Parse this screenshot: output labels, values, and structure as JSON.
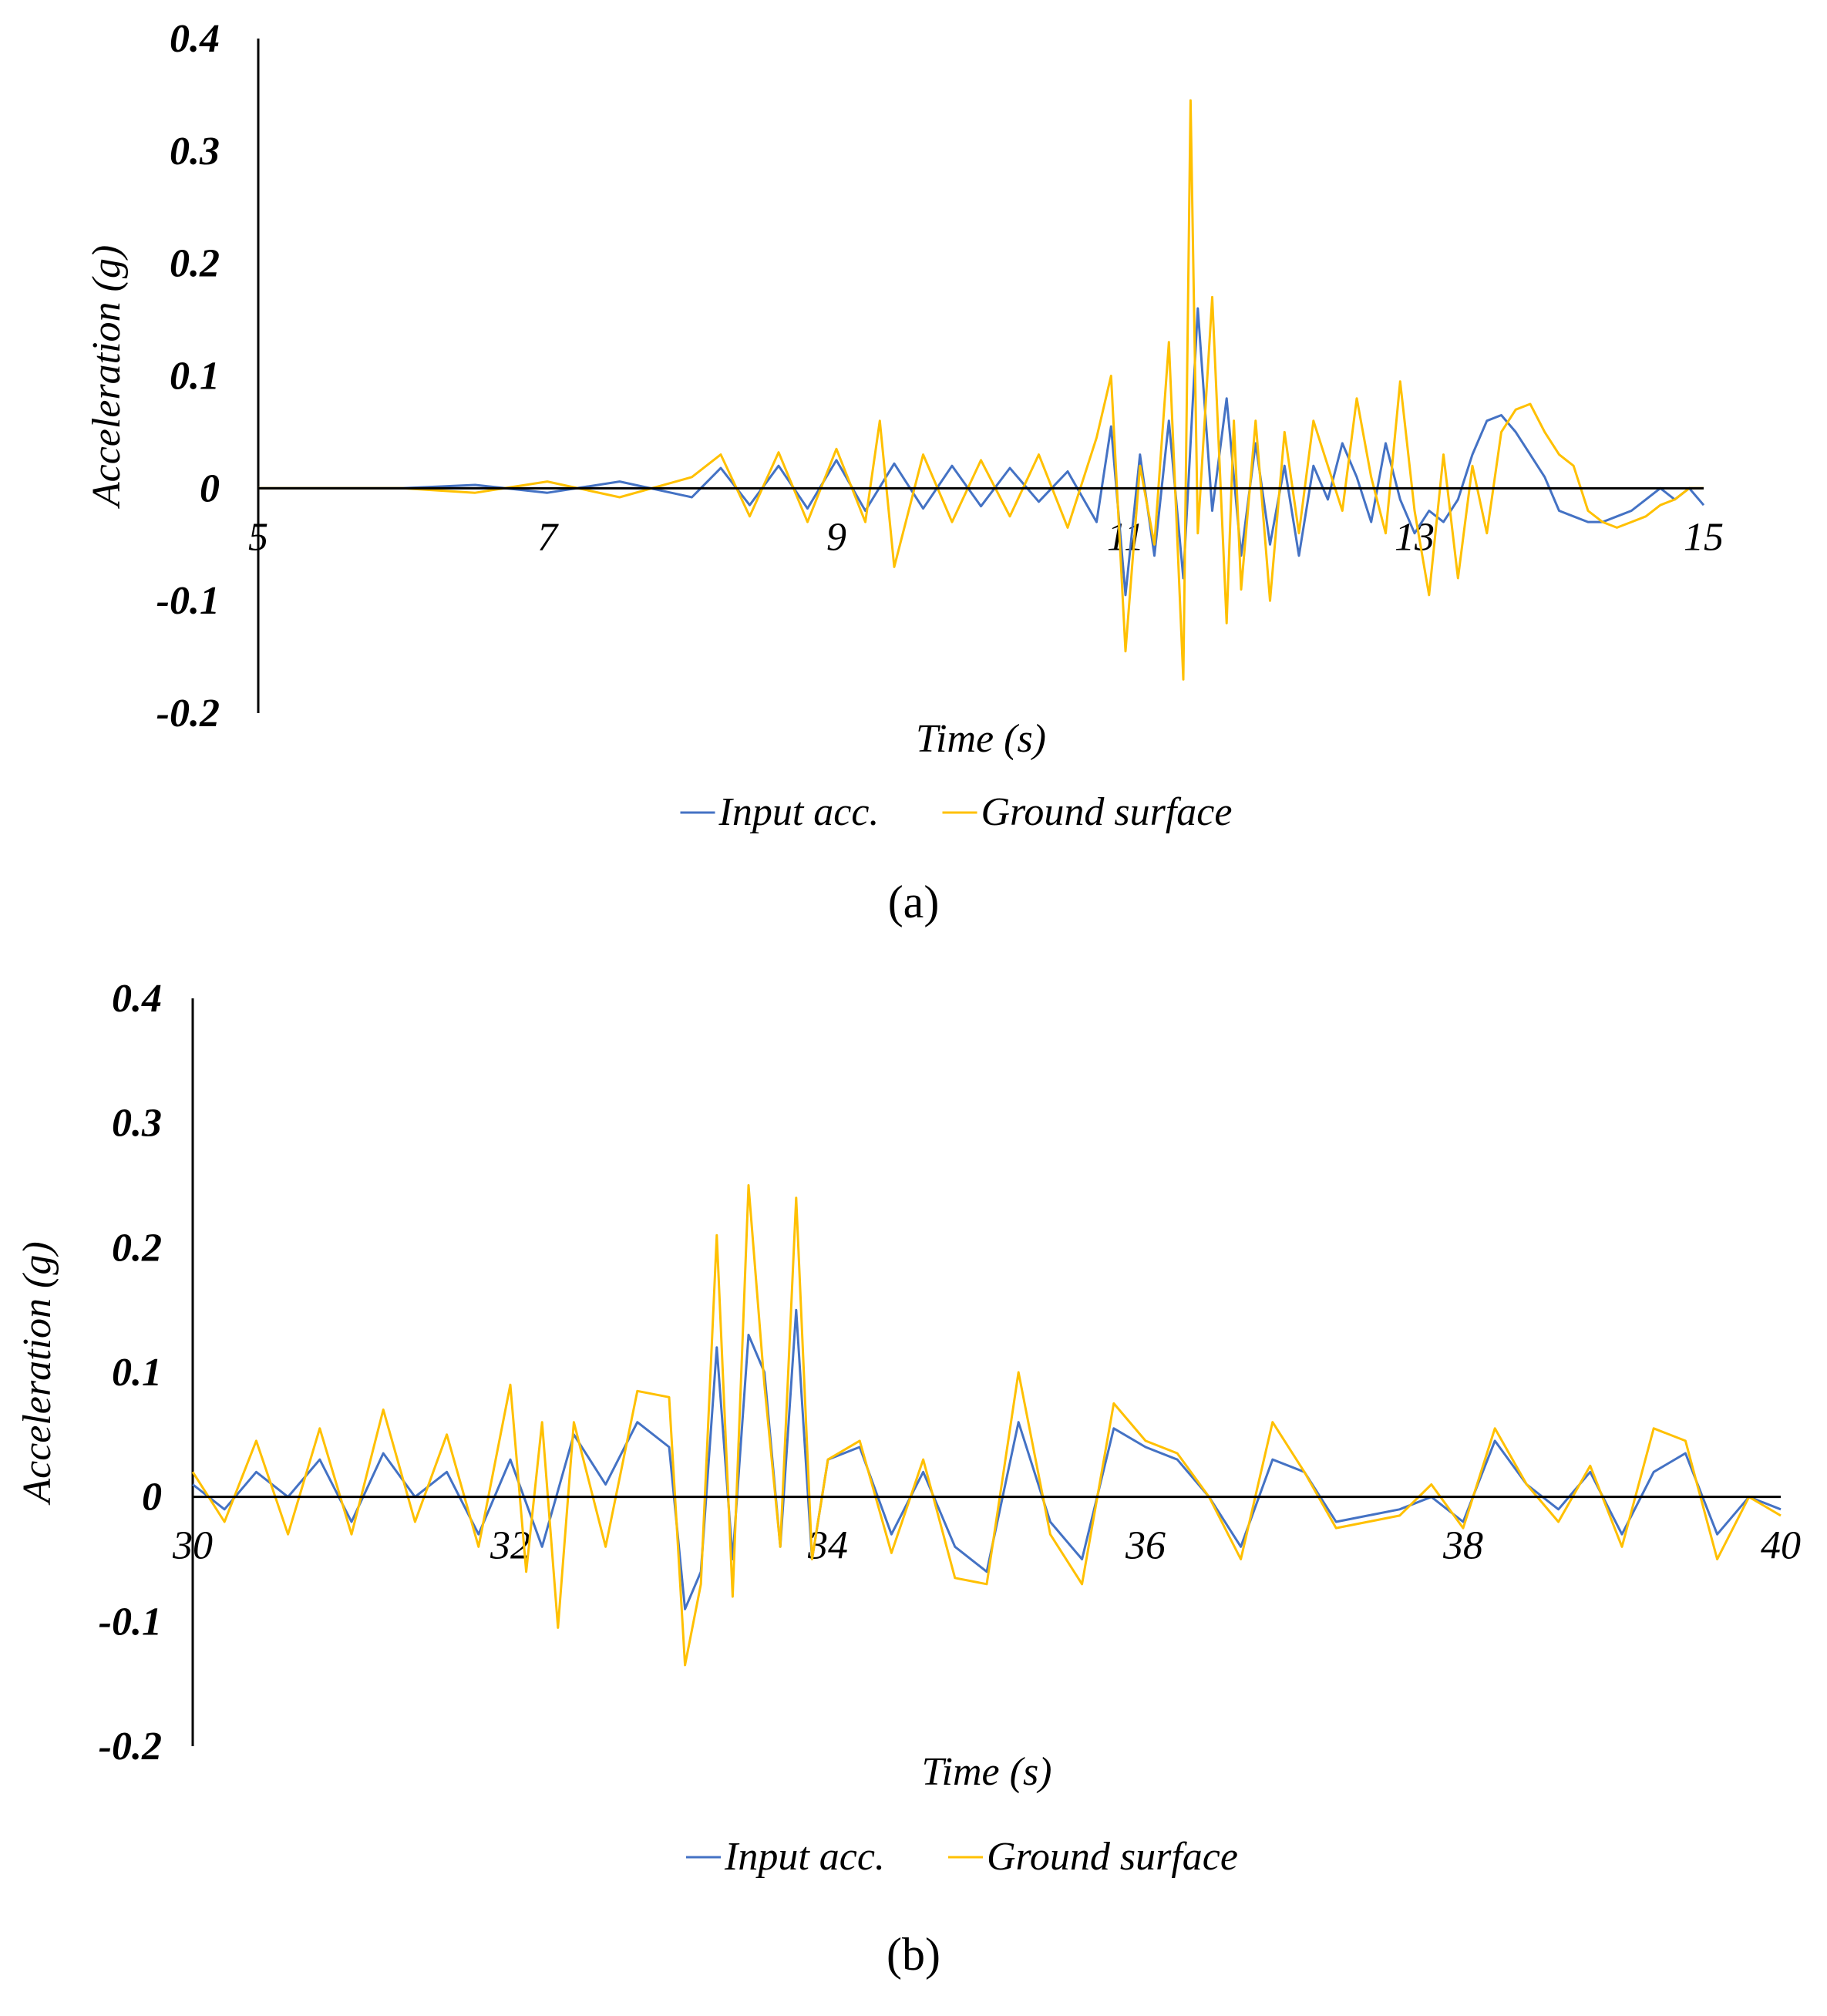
{
  "chart_data": [
    {
      "type": "line",
      "panel_label": "(a)",
      "xlabel": "Time (s)",
      "ylabel": "Acceleration (g)",
      "xlim": [
        5,
        15
      ],
      "ylim": [
        -0.2,
        0.4
      ],
      "x_ticks": [
        "5",
        "7",
        "9",
        "11",
        "13",
        "15"
      ],
      "y_ticks": [
        "0.4",
        "0.3",
        "0.2",
        "0.1",
        "0",
        "-0.1",
        "-0.2"
      ],
      "colors": {
        "input": "#4472C4",
        "ground": "#FFC000"
      },
      "series": [
        {
          "name": "Input acc.",
          "x": [
            5,
            6,
            6.5,
            7,
            7.5,
            8,
            8.2,
            8.4,
            8.6,
            8.8,
            9,
            9.2,
            9.4,
            9.6,
            9.8,
            10,
            10.2,
            10.4,
            10.6,
            10.8,
            10.9,
            11,
            11.1,
            11.2,
            11.3,
            11.4,
            11.5,
            11.6,
            11.7,
            11.8,
            11.9,
            12,
            12.1,
            12.2,
            12.3,
            12.4,
            12.5,
            12.6,
            12.7,
            12.8,
            12.9,
            13,
            13.1,
            13.2,
            13.3,
            13.4,
            13.5,
            13.6,
            13.7,
            13.8,
            13.9,
            14,
            14.1,
            14.2,
            14.3,
            14.4,
            14.5,
            14.6,
            14.7,
            14.8,
            14.9,
            15
          ],
          "values": [
            0,
            0,
            0.003,
            -0.004,
            0.006,
            -0.008,
            0.018,
            -0.015,
            0.02,
            -0.018,
            0.025,
            -0.02,
            0.022,
            -0.018,
            0.02,
            -0.016,
            0.018,
            -0.012,
            0.015,
            -0.03,
            0.055,
            -0.095,
            0.03,
            -0.06,
            0.06,
            -0.08,
            0.16,
            -0.02,
            0.08,
            -0.06,
            0.04,
            -0.05,
            0.02,
            -0.06,
            0.02,
            -0.01,
            0.04,
            0.01,
            -0.03,
            0.04,
            -0.01,
            -0.04,
            -0.02,
            -0.03,
            -0.01,
            0.03,
            0.06,
            0.065,
            0.05,
            0.03,
            0.01,
            -0.02,
            -0.025,
            -0.03,
            -0.03,
            -0.025,
            -0.02,
            -0.01,
            0,
            -0.01,
            0,
            -0.015
          ]
        },
        {
          "name": "Ground surface",
          "x": [
            5,
            6,
            6.5,
            7,
            7.5,
            8,
            8.2,
            8.4,
            8.6,
            8.8,
            9,
            9.2,
            9.3,
            9.4,
            9.6,
            9.8,
            10,
            10.2,
            10.4,
            10.6,
            10.8,
            10.9,
            11,
            11.1,
            11.2,
            11.3,
            11.4,
            11.45,
            11.5,
            11.6,
            11.7,
            11.75,
            11.8,
            11.9,
            12,
            12.1,
            12.2,
            12.3,
            12.4,
            12.5,
            12.6,
            12.7,
            12.8,
            12.9,
            13,
            13.1,
            13.2,
            13.3,
            13.4,
            13.5,
            13.6,
            13.7,
            13.8,
            13.9,
            14,
            14.1,
            14.2,
            14.3,
            14.4,
            14.5,
            14.6,
            14.7,
            14.8,
            14.9,
            15
          ],
          "values": [
            0,
            0,
            -0.004,
            0.006,
            -0.008,
            0.01,
            0.03,
            -0.025,
            0.032,
            -0.03,
            0.035,
            -0.03,
            0.06,
            -0.07,
            0.03,
            -0.03,
            0.025,
            -0.025,
            0.03,
            -0.035,
            0.045,
            0.1,
            -0.145,
            0.02,
            -0.05,
            0.13,
            -0.17,
            0.345,
            -0.04,
            0.17,
            -0.12,
            0.06,
            -0.09,
            0.06,
            -0.1,
            0.05,
            -0.04,
            0.06,
            0.02,
            -0.02,
            0.08,
            0.01,
            -0.04,
            0.095,
            -0.02,
            -0.095,
            0.03,
            -0.08,
            0.02,
            -0.04,
            0.05,
            0.07,
            0.075,
            0.05,
            0.03,
            0.02,
            -0.02,
            -0.03,
            -0.035,
            -0.03,
            -0.025,
            -0.015,
            -0.01,
            0,
            0
          ]
        }
      ],
      "legend": [
        "Input acc.",
        "Ground surface"
      ]
    },
    {
      "type": "line",
      "panel_label": "(b)",
      "xlabel": "Time (s)",
      "ylabel": "Acceleration (g)",
      "xlim": [
        30,
        40
      ],
      "ylim": [
        -0.2,
        0.4
      ],
      "x_ticks": [
        "30",
        "32",
        "34",
        "36",
        "38",
        "40"
      ],
      "y_ticks": [
        "0.4",
        "0.3",
        "0.2",
        "0.1",
        "0",
        "-0.1",
        "-0.2"
      ],
      "colors": {
        "input": "#4472C4",
        "ground": "#FFC000"
      },
      "series": [
        {
          "name": "Input acc.",
          "x": [
            30,
            30.2,
            30.4,
            30.6,
            30.8,
            31,
            31.2,
            31.4,
            31.6,
            31.8,
            32,
            32.2,
            32.4,
            32.6,
            32.8,
            33,
            33.1,
            33.2,
            33.3,
            33.4,
            33.5,
            33.6,
            33.7,
            33.8,
            33.9,
            34,
            34.2,
            34.4,
            34.6,
            34.8,
            35,
            35.2,
            35.4,
            35.6,
            35.8,
            36,
            36.2,
            36.4,
            36.6,
            36.8,
            37,
            37.2,
            37.4,
            37.6,
            37.8,
            38,
            38.2,
            38.4,
            38.6,
            38.8,
            39,
            39.2,
            39.4,
            39.6,
            39.8,
            40
          ],
          "values": [
            0.01,
            -0.01,
            0.02,
            0,
            0.03,
            -0.02,
            0.035,
            0,
            0.02,
            -0.03,
            0.03,
            -0.04,
            0.05,
            0.01,
            0.06,
            0.04,
            -0.09,
            -0.06,
            0.12,
            -0.05,
            0.13,
            0.1,
            -0.04,
            0.15,
            -0.05,
            0.03,
            0.04,
            -0.03,
            0.02,
            -0.04,
            -0.06,
            0.06,
            -0.02,
            -0.05,
            0.055,
            0.04,
            0.03,
            0,
            -0.04,
            0.03,
            0.02,
            -0.02,
            -0.015,
            -0.01,
            0,
            -0.02,
            0.045,
            0.01,
            -0.01,
            0.02,
            -0.03,
            0.02,
            0.035,
            -0.03,
            0,
            -0.01
          ]
        },
        {
          "name": "Ground surface",
          "x": [
            30,
            30.2,
            30.4,
            30.6,
            30.8,
            31,
            31.2,
            31.4,
            31.6,
            31.8,
            32,
            32.1,
            32.2,
            32.3,
            32.4,
            32.6,
            32.8,
            33,
            33.1,
            33.2,
            33.3,
            33.4,
            33.5,
            33.6,
            33.7,
            33.8,
            33.9,
            34,
            34.2,
            34.4,
            34.6,
            34.8,
            35,
            35.2,
            35.4,
            35.6,
            35.8,
            36,
            36.2,
            36.4,
            36.6,
            36.8,
            37,
            37.2,
            37.4,
            37.6,
            37.8,
            38,
            38.2,
            38.4,
            38.6,
            38.8,
            39,
            39.2,
            39.4,
            39.6,
            39.8,
            40
          ],
          "values": [
            0.02,
            -0.02,
            0.045,
            -0.03,
            0.055,
            -0.03,
            0.07,
            -0.02,
            0.05,
            -0.04,
            0.09,
            -0.06,
            0.06,
            -0.105,
            0.06,
            -0.04,
            0.085,
            0.08,
            -0.135,
            -0.07,
            0.21,
            -0.08,
            0.25,
            0.09,
            -0.04,
            0.24,
            -0.05,
            0.03,
            0.045,
            -0.045,
            0.03,
            -0.065,
            -0.07,
            0.1,
            -0.03,
            -0.07,
            0.075,
            0.045,
            0.035,
            0,
            -0.05,
            0.06,
            0.02,
            -0.025,
            -0.02,
            -0.015,
            0.01,
            -0.025,
            0.055,
            0.01,
            -0.02,
            0.025,
            -0.04,
            0.055,
            0.045,
            -0.05,
            0,
            -0.015
          ]
        }
      ],
      "legend": [
        "Input acc.",
        "Ground surface"
      ]
    }
  ]
}
